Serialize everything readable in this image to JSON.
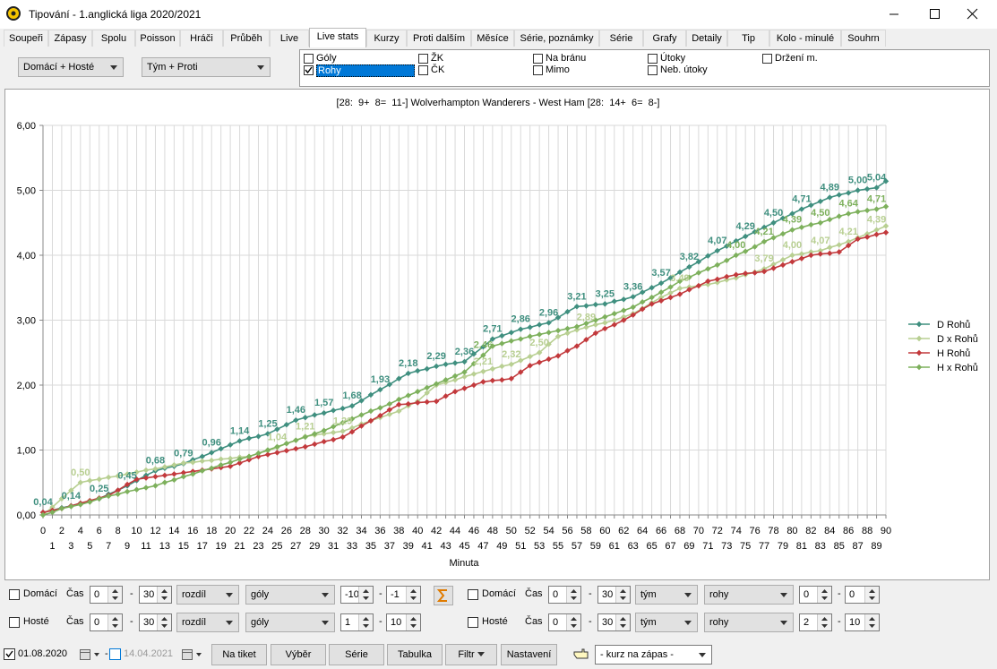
{
  "window": {
    "title": "Tipování - 1.anglická liga 2020/2021"
  },
  "tabs": [
    "Soupeři",
    "Zápasy",
    "Spolu",
    "Poisson",
    "Hráči",
    "Průběh",
    "Live",
    "Live stats",
    "Kurzy",
    "Proti dalším",
    "Měsíce",
    "Série, poznámky",
    "Série",
    "Grafy",
    "Detaily",
    "Tip",
    "Kolo - minulé",
    "Souhrn"
  ],
  "selects": [
    "Domácí + Hosté",
    "Tým + Proti"
  ],
  "checkboxes": [
    {
      "label": "Góly",
      "checked": false
    },
    {
      "label": "Rohy",
      "checked": true
    },
    {
      "label": "ŽK",
      "checked": false
    },
    {
      "label": "ČK",
      "checked": false
    },
    {
      "label": "Na bránu",
      "checked": false
    },
    {
      "label": "Mimo",
      "checked": false
    },
    {
      "label": "Útoky",
      "checked": false
    },
    {
      "label": "Neb. útoky",
      "checked": false
    },
    {
      "label": "Držení m.",
      "checked": false
    }
  ],
  "chart_data": {
    "type": "line",
    "title": "[28:  9+  8=  11-] Wolverhampton Wanderers - West Ham [28:  14+  6=  8-]",
    "x_label": "Minuta",
    "x": [
      0,
      1,
      2,
      3,
      4,
      5,
      6,
      7,
      8,
      9,
      10,
      11,
      12,
      13,
      14,
      15,
      16,
      17,
      18,
      19,
      20,
      21,
      22,
      23,
      24,
      25,
      26,
      27,
      28,
      29,
      30,
      31,
      32,
      33,
      34,
      35,
      36,
      37,
      38,
      39,
      40,
      41,
      42,
      43,
      44,
      45,
      46,
      47,
      48,
      49,
      50,
      51,
      52,
      53,
      54,
      55,
      56,
      57,
      58,
      59,
      60,
      61,
      62,
      63,
      64,
      65,
      66,
      67,
      68,
      69,
      70,
      71,
      72,
      73,
      74,
      75,
      76,
      77,
      78,
      79,
      80,
      81,
      82,
      83,
      84,
      85,
      86,
      87,
      88,
      89,
      90
    ],
    "xlim": [
      0,
      90
    ],
    "xticks": [
      0,
      1,
      2,
      3,
      4,
      5,
      6,
      7,
      8,
      9,
      10,
      11,
      12,
      13,
      14,
      15,
      16,
      17,
      18,
      19,
      20,
      21,
      22,
      23,
      24,
      25,
      26,
      27,
      28,
      29,
      30,
      31,
      32,
      33,
      34,
      35,
      36,
      37,
      38,
      39,
      40,
      41,
      42,
      43,
      44,
      45,
      46,
      47,
      48,
      49,
      50,
      51,
      52,
      53,
      54,
      55,
      56,
      57,
      58,
      59,
      60,
      61,
      62,
      63,
      64,
      65,
      66,
      67,
      68,
      69,
      70,
      71,
      72,
      73,
      74,
      75,
      76,
      77,
      78,
      79,
      80,
      81,
      82,
      83,
      84,
      85,
      86,
      87,
      88,
      89,
      90
    ],
    "ylim": [
      0,
      6
    ],
    "yticks": [
      {
        "value": 0,
        "label": "0,00"
      },
      {
        "value": 1,
        "label": "1,00"
      },
      {
        "value": 2,
        "label": "2,00"
      },
      {
        "value": 3,
        "label": "3,00"
      },
      {
        "value": 4,
        "label": "4,00"
      },
      {
        "value": 5,
        "label": "5,00"
      },
      {
        "value": 6,
        "label": "6,00"
      }
    ],
    "grid": true,
    "legend": "right",
    "series": [
      {
        "name": "D Rohů",
        "color": "#3f8f7f",
        "values": [
          0.04,
          0.07,
          0.11,
          0.14,
          0.18,
          0.21,
          0.25,
          0.32,
          0.38,
          0.45,
          0.53,
          0.61,
          0.68,
          0.72,
          0.75,
          0.79,
          0.85,
          0.9,
          0.96,
          1.02,
          1.08,
          1.14,
          1.18,
          1.21,
          1.25,
          1.32,
          1.39,
          1.46,
          1.5,
          1.54,
          1.57,
          1.61,
          1.64,
          1.68,
          1.76,
          1.85,
          1.93,
          2.01,
          2.1,
          2.18,
          2.22,
          2.25,
          2.29,
          2.32,
          2.34,
          2.36,
          2.48,
          2.59,
          2.71,
          2.76,
          2.81,
          2.86,
          2.89,
          2.93,
          2.96,
          3.04,
          3.13,
          3.21,
          3.22,
          3.24,
          3.25,
          3.29,
          3.32,
          3.36,
          3.43,
          3.5,
          3.57,
          3.65,
          3.74,
          3.82,
          3.9,
          3.99,
          4.07,
          4.14,
          4.22,
          4.29,
          4.36,
          4.43,
          4.5,
          4.57,
          4.64,
          4.71,
          4.77,
          4.83,
          4.89,
          4.93,
          4.96,
          5.0,
          5.02,
          5.04,
          5.14
        ],
        "value_labels": [
          "0,04",
          null,
          null,
          "0,14",
          null,
          null,
          "0,25",
          null,
          null,
          "0,45",
          null,
          null,
          "0,68",
          null,
          null,
          "0,79",
          null,
          null,
          "0,96",
          null,
          null,
          "1,14",
          null,
          null,
          "1,25",
          null,
          null,
          "1,46",
          null,
          null,
          "1,57",
          null,
          null,
          "1,68",
          null,
          null,
          "1,93",
          null,
          null,
          "2,18",
          null,
          null,
          "2,29",
          null,
          null,
          "2,36",
          null,
          null,
          "2,71",
          null,
          null,
          "2,86",
          null,
          null,
          "2,96",
          null,
          null,
          "3,21",
          null,
          null,
          "3,25",
          null,
          null,
          "3,36",
          null,
          null,
          "3,57",
          null,
          null,
          "3,82",
          null,
          null,
          "4,07",
          null,
          null,
          "4,29",
          null,
          null,
          "4,50",
          null,
          null,
          "4,71",
          null,
          null,
          "4,89",
          null,
          null,
          "5,00",
          null,
          "5,04",
          null
        ]
      },
      {
        "name": "D x Rohů",
        "color": "#b8cf92",
        "values": [
          0.0,
          0.12,
          0.25,
          0.38,
          0.5,
          0.53,
          0.55,
          0.58,
          0.6,
          0.63,
          0.66,
          0.69,
          0.71,
          0.74,
          0.77,
          0.8,
          0.81,
          0.83,
          0.84,
          0.86,
          0.87,
          0.89,
          0.9,
          0.95,
          0.99,
          1.04,
          1.1,
          1.15,
          1.21,
          1.23,
          1.25,
          1.27,
          1.29,
          1.34,
          1.4,
          1.45,
          1.5,
          1.55,
          1.6,
          1.68,
          1.75,
          1.88,
          2.0,
          2.04,
          2.08,
          2.13,
          2.17,
          2.21,
          2.25,
          2.29,
          2.32,
          2.38,
          2.44,
          2.5,
          2.63,
          2.75,
          2.8,
          2.85,
          2.89,
          2.93,
          2.96,
          3.0,
          3.05,
          3.1,
          3.18,
          3.27,
          3.35,
          3.42,
          3.49,
          3.51,
          3.53,
          3.55,
          3.58,
          3.62,
          3.65,
          3.7,
          3.74,
          3.79,
          3.86,
          3.93,
          4.0,
          4.02,
          4.05,
          4.07,
          4.12,
          4.16,
          4.21,
          4.27,
          4.33,
          4.39,
          4.45
        ],
        "value_labels": [
          null,
          null,
          null,
          null,
          "0,50",
          null,
          null,
          null,
          null,
          null,
          null,
          null,
          null,
          null,
          null,
          null,
          null,
          null,
          null,
          null,
          null,
          null,
          null,
          null,
          null,
          "1,04",
          null,
          null,
          "1,21",
          null,
          null,
          null,
          "1,29",
          null,
          null,
          null,
          null,
          null,
          null,
          null,
          null,
          null,
          null,
          null,
          null,
          null,
          null,
          "2,21",
          null,
          null,
          "2,32",
          null,
          null,
          "2,50",
          null,
          null,
          null,
          null,
          "2,89",
          null,
          null,
          null,
          null,
          null,
          null,
          null,
          null,
          null,
          "3,49",
          null,
          null,
          null,
          null,
          null,
          null,
          null,
          null,
          "3,79",
          null,
          null,
          "4,00",
          null,
          null,
          "4,07",
          null,
          null,
          "4,21",
          null,
          null,
          "4,39",
          null
        ]
      },
      {
        "name": "H Rohů",
        "color": "#c2393c",
        "values": [
          0.04,
          0.07,
          0.1,
          0.14,
          0.18,
          0.22,
          0.26,
          0.3,
          0.38,
          0.47,
          0.55,
          0.57,
          0.59,
          0.61,
          0.63,
          0.65,
          0.67,
          0.69,
          0.71,
          0.73,
          0.75,
          0.8,
          0.85,
          0.9,
          0.93,
          0.96,
          0.99,
          1.02,
          1.05,
          1.09,
          1.13,
          1.16,
          1.2,
          1.28,
          1.37,
          1.45,
          1.53,
          1.62,
          1.7,
          1.71,
          1.73,
          1.74,
          1.75,
          1.83,
          1.9,
          1.95,
          2.0,
          2.05,
          2.07,
          2.08,
          2.1,
          2.2,
          2.3,
          2.35,
          2.4,
          2.45,
          2.53,
          2.6,
          2.7,
          2.8,
          2.87,
          2.93,
          3.0,
          3.08,
          3.17,
          3.25,
          3.3,
          3.35,
          3.4,
          3.47,
          3.53,
          3.6,
          3.63,
          3.67,
          3.7,
          3.72,
          3.73,
          3.75,
          3.8,
          3.85,
          3.9,
          3.95,
          4.0,
          4.02,
          4.03,
          4.05,
          4.15,
          4.25,
          4.28,
          4.32,
          4.35
        ]
      },
      {
        "name": "H x Rohů",
        "color": "#7db05c",
        "values": [
          0.0,
          0.04,
          0.1,
          0.13,
          0.16,
          0.2,
          0.25,
          0.29,
          0.32,
          0.36,
          0.39,
          0.42,
          0.45,
          0.5,
          0.54,
          0.59,
          0.63,
          0.68,
          0.72,
          0.77,
          0.81,
          0.86,
          0.9,
          0.95,
          1.0,
          1.05,
          1.1,
          1.15,
          1.2,
          1.25,
          1.3,
          1.36,
          1.42,
          1.48,
          1.54,
          1.6,
          1.65,
          1.71,
          1.78,
          1.84,
          1.9,
          1.96,
          2.02,
          2.08,
          2.14,
          2.2,
          2.33,
          2.46,
          2.6,
          2.64,
          2.68,
          2.71,
          2.75,
          2.78,
          2.81,
          2.84,
          2.87,
          2.9,
          2.95,
          3.0,
          3.05,
          3.1,
          3.15,
          3.2,
          3.28,
          3.35,
          3.43,
          3.51,
          3.6,
          3.66,
          3.73,
          3.79,
          3.85,
          3.92,
          4.0,
          4.06,
          4.13,
          4.21,
          4.27,
          4.33,
          4.39,
          4.43,
          4.47,
          4.5,
          4.55,
          4.6,
          4.64,
          4.67,
          4.69,
          4.71,
          4.75
        ],
        "value_labels": [
          null,
          null,
          null,
          null,
          null,
          null,
          null,
          null,
          null,
          null,
          null,
          null,
          null,
          null,
          null,
          null,
          null,
          null,
          null,
          null,
          null,
          null,
          null,
          null,
          null,
          null,
          null,
          null,
          null,
          null,
          null,
          null,
          null,
          null,
          null,
          null,
          null,
          null,
          null,
          null,
          null,
          null,
          null,
          null,
          null,
          null,
          null,
          "2,46",
          null,
          null,
          null,
          null,
          null,
          null,
          null,
          null,
          null,
          null,
          null,
          null,
          null,
          null,
          null,
          null,
          null,
          null,
          null,
          null,
          null,
          null,
          null,
          null,
          null,
          null,
          "4,00",
          null,
          null,
          "4,21",
          null,
          null,
          "4,39",
          null,
          null,
          "4,50",
          null,
          null,
          "4,64",
          null,
          null,
          "4,71",
          null
        ]
      }
    ]
  },
  "filters": [
    {
      "check": "Domácí",
      "time": "Čas",
      "from": 0,
      "dash1": "-",
      "to": 30,
      "mode": "rozdíl",
      "stat": "góly",
      "min": -10,
      "dash2": "-",
      "max": -1
    },
    {
      "check": "Hosté",
      "time": "Čas",
      "from": 0,
      "dash1": "-",
      "to": 30,
      "mode": "rozdíl",
      "stat": "góly",
      "min": 1,
      "dash2": "-",
      "max": 10
    },
    {
      "check": "Domácí",
      "time": "Čas",
      "from": 0,
      "dash1": "-",
      "to": 30,
      "mode": "tým",
      "stat": "rohy",
      "min": 0,
      "dash2": "-",
      "max": 0
    },
    {
      "check": "Hosté",
      "time": "Čas",
      "from": 0,
      "dash1": "-",
      "to": 30,
      "mode": "tým",
      "stat": "rohy",
      "min": 2,
      "dash2": "-",
      "max": 10
    }
  ],
  "toolbar": {
    "date_from": "01.08.2020",
    "dash": "-",
    "date_to": "14.04.2021",
    "buttons": [
      "Na tiket",
      "Výběr",
      "Série",
      "Tabulka",
      "Filtr",
      "Nastavení"
    ],
    "odds_select": "- kurz na zápas -"
  }
}
